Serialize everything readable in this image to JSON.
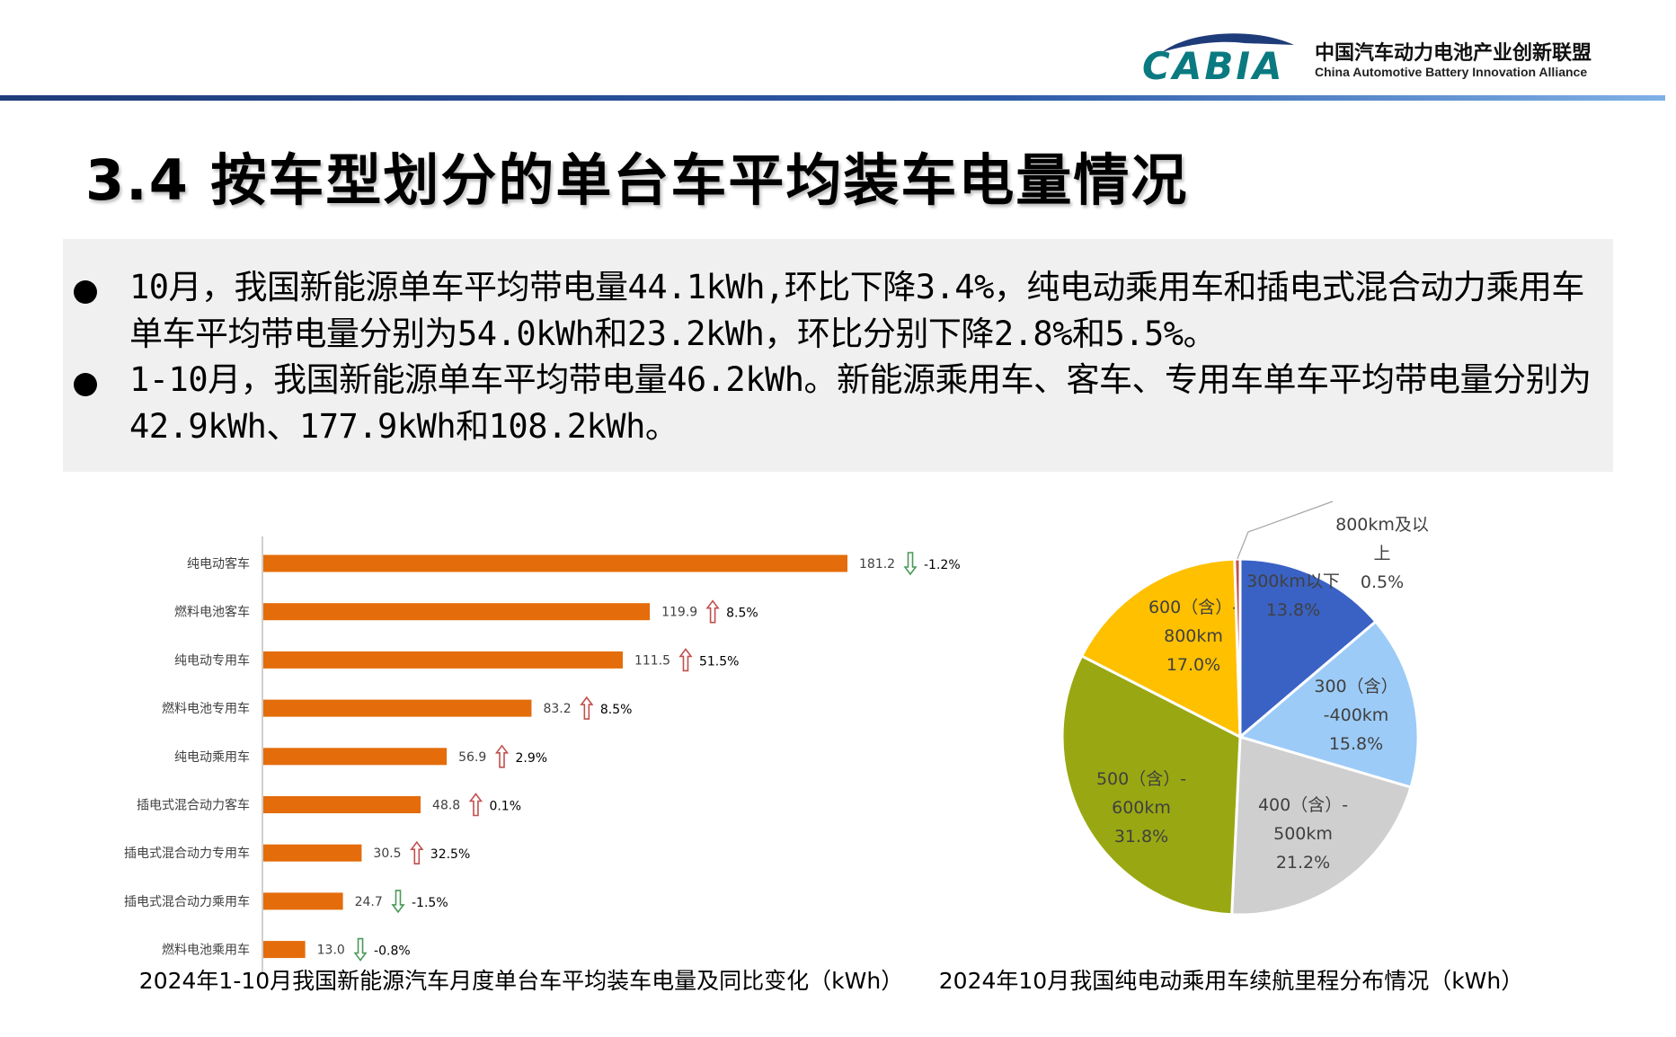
{
  "header": {
    "logo_text": "CABIA",
    "org_name_cn": "中国汽车动力电池产业创新联盟",
    "org_name_en": "China Automotive Battery Innovation Alliance",
    "accent_color": "#1f3c7a",
    "logo_color": "#0a7a80"
  },
  "page_title": "3.4 按车型划分的单台车平均装车电量情况",
  "summary": {
    "bullet1": "10月，我国新能源单车平均带电量44.1kWh,环比下降3.4%，纯电动乘用车和插电式混合动力乘用车单车平均带电量分别为54.0kWh和23.2kWh，环比分别下降2.8%和5.5%。",
    "bullet2": "1-10月，我国新能源单车平均带电量46.2kWh。新能源乘用车、客车、专用车单车平均带电量分别为42.9kWh、177.9kWh和108.2kWh。"
  },
  "chart_data": [
    {
      "type": "bar",
      "orientation": "horizontal",
      "title": "2024年1-10月我国新能源汽车月度单台车平均装车电量及同比变化（kWh）",
      "bar_color": "#e46c0a",
      "up_arrow_color": "#c0504d",
      "down_arrow_color": "#4a9a5a",
      "categories": [
        "纯电动客车",
        "燃料电池客车",
        "纯电动专用车",
        "燃料电池专用车",
        "纯电动乘用车",
        "插电式混合动力客车",
        "插电式混合动力专用车",
        "插电式混合动力乘用车",
        "燃料电池乘用车"
      ],
      "values": [
        181.2,
        119.9,
        111.5,
        83.2,
        56.9,
        48.8,
        30.5,
        24.7,
        13.0
      ],
      "value_labels": [
        "181.2",
        "119.9",
        "111.5",
        "83.2",
        "56.9",
        "48.8",
        "30.5",
        "24.7",
        "13.0"
      ],
      "yoy_change": [
        "-1.2%",
        "8.5%",
        "51.5%",
        "8.5%",
        "2.9%",
        "0.1%",
        "32.5%",
        "-1.5%",
        "-0.8%"
      ],
      "yoy_direction": [
        "down",
        "up",
        "up",
        "up",
        "up",
        "up",
        "up",
        "down",
        "down"
      ],
      "xlim": [
        0,
        200
      ]
    },
    {
      "type": "pie",
      "title": "2024年10月我国纯电动乘用车续航里程分布情况（kWh）",
      "slices": [
        {
          "label_lines": [
            "300km以下",
            "13.8%"
          ],
          "value": 13.8,
          "color": "#3a62c4"
        },
        {
          "label_lines": [
            "300（含）",
            "-400km",
            "15.8%"
          ],
          "value": 15.8,
          "color": "#9ccbf7"
        },
        {
          "label_lines": [
            "400（含）-",
            "500km",
            "21.2%"
          ],
          "value": 21.2,
          "color": "#cfcfcf"
        },
        {
          "label_lines": [
            "500（含）-",
            "600km",
            "31.8%"
          ],
          "value": 31.8,
          "color": "#99a812"
        },
        {
          "label_lines": [
            "600（含）-",
            "800km",
            "17.0%"
          ],
          "value": 17.0,
          "color": "#ffc000"
        },
        {
          "label_lines": [
            "800km及以",
            "上",
            "0.5%"
          ],
          "value": 0.5,
          "color": "#c0504d"
        }
      ]
    }
  ]
}
